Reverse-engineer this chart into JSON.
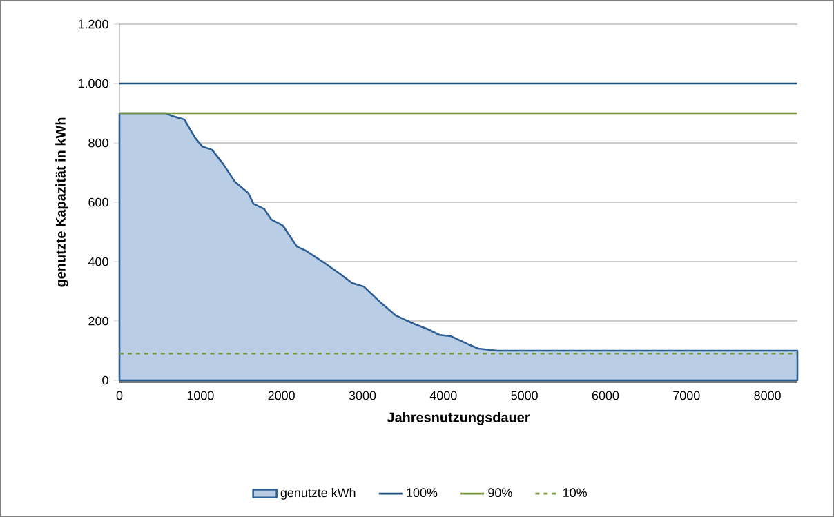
{
  "chart_data": {
    "type": "area",
    "xlabel": "Jahresnutzungsdauer",
    "ylabel": "genutzte Kapazität in kWh",
    "xlim": [
      0,
      8370
    ],
    "ylim": [
      0,
      1200
    ],
    "xticks": [
      0,
      1000,
      2000,
      3000,
      4000,
      5000,
      6000,
      7000,
      8000
    ],
    "yticks": [
      0,
      200,
      400,
      600,
      800,
      {
        "value": 1000,
        "label": "1.000"
      },
      {
        "value": 1200,
        "label": "1.200"
      }
    ],
    "grid": "y",
    "legend": "bottom",
    "series": [
      {
        "name": "genutzte kWh",
        "color": "#2e5f94",
        "x": [
          0,
          570,
          660,
          800,
          937,
          1022,
          1142,
          1278,
          1423,
          1593,
          1653,
          1789,
          1874,
          2019,
          2189,
          2300,
          2530,
          2726,
          2871,
          3016,
          3212,
          3408,
          3612,
          3808,
          3953,
          4089,
          4294,
          4430,
          4660,
          8370
        ],
        "values": [
          900,
          900,
          890,
          879,
          816,
          788,
          777,
          730,
          670,
          630,
          595,
          577,
          542,
          521,
          451,
          437,
          396,
          358,
          328,
          316,
          265,
          219,
          193,
          172,
          153,
          149,
          123,
          107,
          100,
          100
        ]
      },
      {
        "name": "100%",
        "type": "line",
        "color": "#1f4e79",
        "line_style": "solid",
        "x": [
          0,
          8370
        ],
        "values": [
          1000,
          1000
        ]
      },
      {
        "name": "90%",
        "type": "line",
        "color": "#77933c",
        "line_style": "solid",
        "x": [
          0,
          8370
        ],
        "values": [
          900,
          900
        ]
      },
      {
        "name": "10%",
        "type": "line",
        "color": "#77933c",
        "line_style": "dashed",
        "x": [
          0,
          8370
        ],
        "values": [
          90,
          90
        ]
      }
    ]
  }
}
